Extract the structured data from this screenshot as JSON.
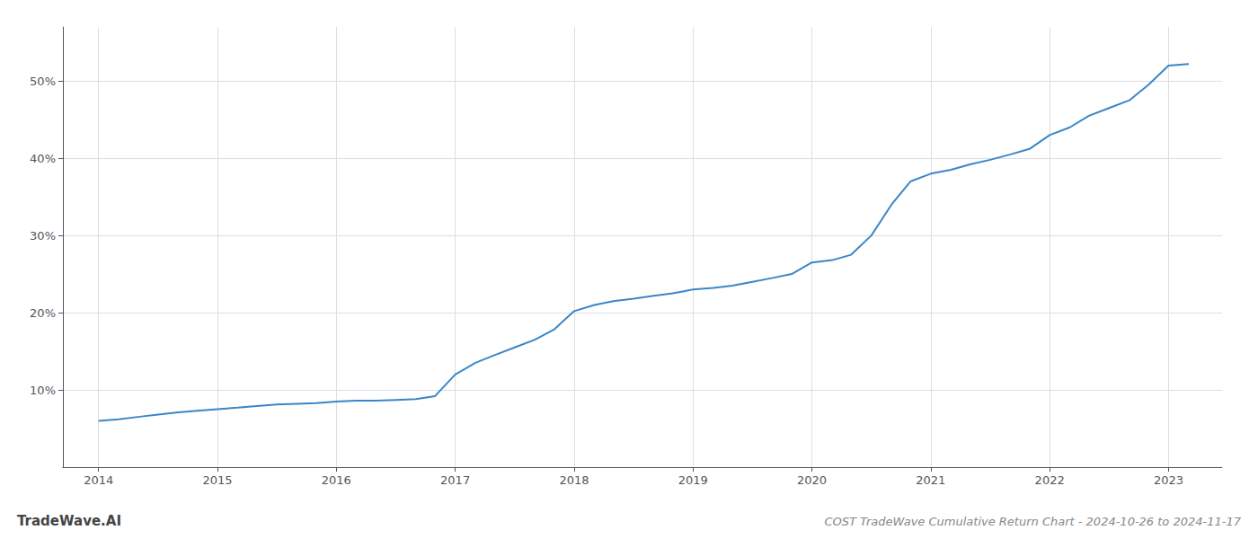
{
  "chart_data": {
    "type": "line",
    "title": "COST TradeWave Cumulative Return Chart - 2024-10-26 to 2024-11-17",
    "annotations": [
      "TradeWave.AI"
    ],
    "color": "#3a86c8",
    "x": [
      2014.0,
      2014.17,
      2014.33,
      2014.5,
      2014.67,
      2014.83,
      2015.0,
      2015.17,
      2015.33,
      2015.5,
      2015.67,
      2015.83,
      2016.0,
      2016.17,
      2016.33,
      2016.5,
      2016.67,
      2016.83,
      2017.0,
      2017.17,
      2017.33,
      2017.5,
      2017.67,
      2017.83,
      2018.0,
      2018.17,
      2018.33,
      2018.5,
      2018.67,
      2018.83,
      2019.0,
      2019.17,
      2019.33,
      2019.5,
      2019.67,
      2019.83,
      2020.0,
      2020.17,
      2020.33,
      2020.5,
      2020.67,
      2020.83,
      2021.0,
      2021.17,
      2021.33,
      2021.5,
      2021.67,
      2021.83,
      2022.0,
      2022.17,
      2022.33,
      2022.5,
      2022.67,
      2022.83,
      2023.0,
      2023.17
    ],
    "values": [
      6.0,
      6.2,
      6.5,
      6.8,
      7.1,
      7.3,
      7.5,
      7.7,
      7.9,
      8.1,
      8.2,
      8.3,
      8.5,
      8.6,
      8.6,
      8.7,
      8.8,
      9.2,
      12.0,
      13.5,
      14.5,
      15.5,
      16.5,
      17.8,
      20.2,
      21.0,
      21.5,
      21.8,
      22.2,
      22.5,
      23.0,
      23.2,
      23.5,
      24.0,
      24.5,
      25.0,
      26.5,
      26.8,
      27.5,
      30.0,
      34.0,
      37.0,
      38.0,
      38.5,
      39.2,
      39.8,
      40.5,
      41.2,
      43.0,
      44.0,
      45.5,
      46.5,
      47.5,
      49.5,
      52.0,
      52.2
    ],
    "xlim": [
      2013.7,
      2023.45
    ],
    "ylim": [
      0,
      57
    ],
    "xticks": [
      2014,
      2015,
      2016,
      2017,
      2018,
      2019,
      2020,
      2021,
      2022,
      2023
    ],
    "yticks": [
      {
        "value": 10,
        "label": "10%"
      },
      {
        "value": 20,
        "label": "20%"
      },
      {
        "value": 30,
        "label": "30%"
      },
      {
        "value": 40,
        "label": "40%"
      },
      {
        "value": 50,
        "label": "50%"
      }
    ],
    "grid": true
  }
}
